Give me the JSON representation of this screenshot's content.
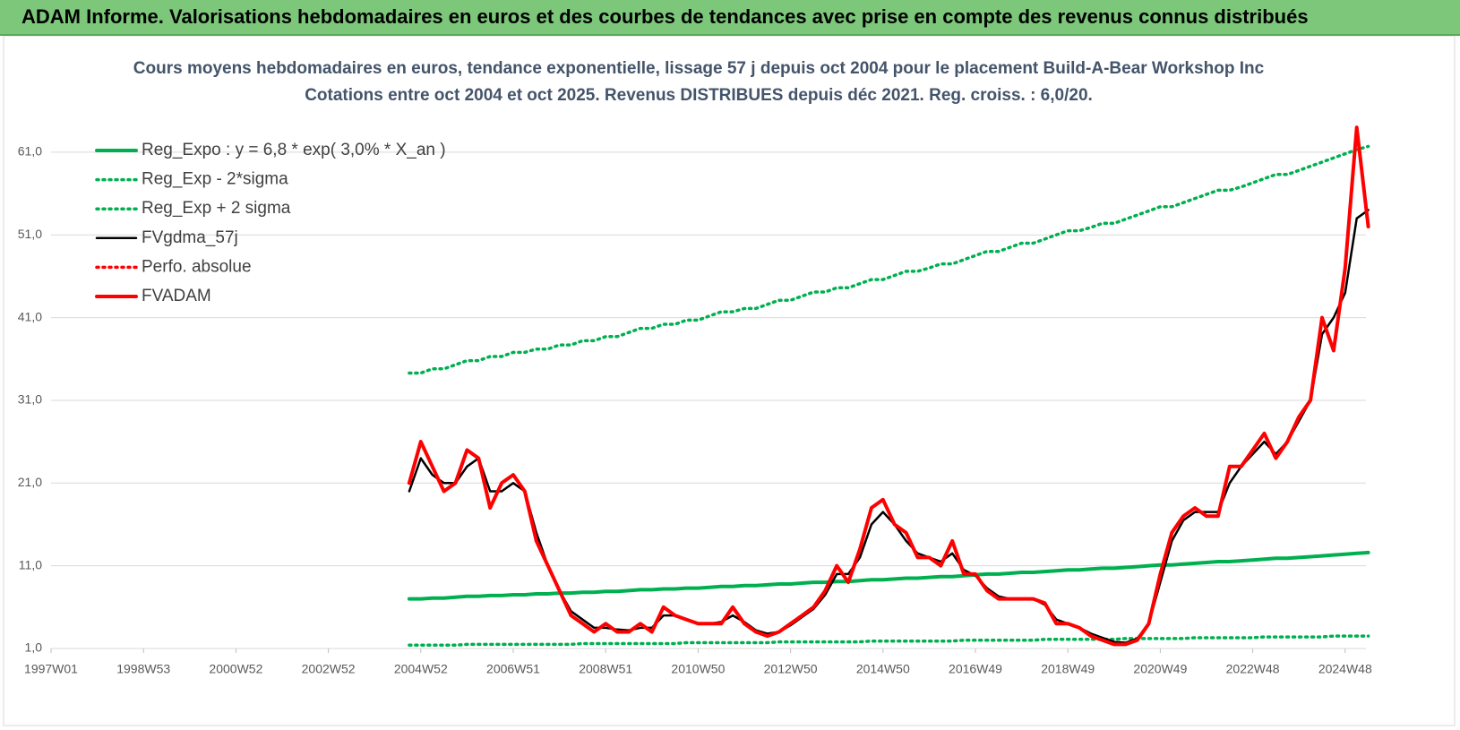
{
  "banner": "ADAM Informe. Valorisations hebdomadaires en euros et des courbes de tendances avec prise en compte des revenus connus distribués",
  "chart_data": {
    "type": "line",
    "title": "Cours moyens hebdomadaires en euros, tendance exponentielle, lissage 57 j depuis oct 2004 pour le placement Build-A-Bear Workshop Inc",
    "subtitle": "Cotations entre oct 2004 et oct 2025.  Revenus DISTRIBUES depuis déc 2021. Reg. croiss. : 6,0/20.",
    "categories": [
      "1997W01",
      null,
      null,
      null,
      null,
      null,
      null,
      null,
      "1998W53",
      null,
      null,
      null,
      null,
      null,
      null,
      null,
      "2000W52",
      null,
      null,
      null,
      null,
      null,
      null,
      null,
      "2002W52",
      null,
      null,
      null,
      null,
      null,
      null,
      null,
      "2004W52",
      null,
      null,
      null,
      null,
      null,
      null,
      null,
      "2006W51",
      null,
      null,
      null,
      null,
      null,
      null,
      null,
      "2008W51",
      null,
      null,
      null,
      null,
      null,
      null,
      null,
      "2010W50",
      null,
      null,
      null,
      null,
      null,
      null,
      null,
      "2012W50",
      null,
      null,
      null,
      null,
      null,
      null,
      null,
      "2014W50",
      null,
      null,
      null,
      null,
      null,
      null,
      null,
      "2016W49",
      null,
      null,
      null,
      null,
      null,
      null,
      null,
      "2018W49",
      null,
      null,
      null,
      null,
      null,
      null,
      null,
      "2020W49",
      null,
      null,
      null,
      null,
      null,
      null,
      null,
      "2022W48",
      null,
      null,
      null,
      null,
      null,
      null,
      null,
      "2024W48",
      null,
      null
    ],
    "ylim": [
      1,
      69
    ],
    "yticks": [
      {
        "value": 1,
        "label": "1,0"
      },
      {
        "value": 11,
        "label": "11,0"
      },
      {
        "value": 21,
        "label": "21,0"
      },
      {
        "value": 31,
        "label": "31,0"
      },
      {
        "value": 41,
        "label": "41,0"
      },
      {
        "value": 51,
        "label": "51,0"
      },
      {
        "value": 61,
        "label": "61,0"
      }
    ],
    "grid": true,
    "legend": "top-left",
    "series": [
      {
        "name": "Reg_Expo : y = 6,8 * exp( 3,0% *  X_an )",
        "color": "#00b050",
        "style": "solid",
        "values": [
          null,
          null,
          null,
          null,
          null,
          null,
          null,
          null,
          null,
          null,
          null,
          null,
          null,
          null,
          null,
          null,
          null,
          null,
          null,
          null,
          null,
          null,
          null,
          null,
          null,
          null,
          null,
          null,
          null,
          null,
          null,
          7.0,
          7.0,
          7.1,
          7.1,
          7.2,
          7.3,
          7.3,
          7.4,
          7.4,
          7.5,
          7.5,
          7.6,
          7.6,
          7.7,
          7.7,
          7.8,
          7.8,
          7.9,
          7.9,
          8.0,
          8.1,
          8.1,
          8.2,
          8.2,
          8.3,
          8.3,
          8.4,
          8.5,
          8.5,
          8.6,
          8.6,
          8.7,
          8.8,
          8.8,
          8.9,
          9.0,
          9.0,
          9.1,
          9.1,
          9.2,
          9.3,
          9.3,
          9.4,
          9.5,
          9.5,
          9.6,
          9.7,
          9.7,
          9.8,
          9.9,
          10.0,
          10.0,
          10.1,
          10.2,
          10.2,
          10.3,
          10.4,
          10.5,
          10.5,
          10.6,
          10.7,
          10.7,
          10.8,
          10.9,
          11.0,
          11.1,
          11.1,
          11.2,
          11.3,
          11.4,
          11.5,
          11.5,
          11.6,
          11.7,
          11.8,
          11.9,
          11.9,
          12.0,
          12.1,
          12.2,
          12.3,
          12.4,
          12.5,
          12.6
        ]
      },
      {
        "name": "Reg_Exp - 2*sigma",
        "color": "#00b050",
        "style": "dotted",
        "values": [
          null,
          null,
          null,
          null,
          null,
          null,
          null,
          null,
          null,
          null,
          null,
          null,
          null,
          null,
          null,
          null,
          null,
          null,
          null,
          null,
          null,
          null,
          null,
          null,
          null,
          null,
          null,
          null,
          null,
          null,
          null,
          1.4,
          1.4,
          1.4,
          1.4,
          1.4,
          1.5,
          1.5,
          1.5,
          1.5,
          1.5,
          1.5,
          1.5,
          1.5,
          1.5,
          1.5,
          1.6,
          1.6,
          1.6,
          1.6,
          1.6,
          1.6,
          1.6,
          1.6,
          1.6,
          1.7,
          1.7,
          1.7,
          1.7,
          1.7,
          1.7,
          1.7,
          1.7,
          1.8,
          1.8,
          1.8,
          1.8,
          1.8,
          1.8,
          1.8,
          1.8,
          1.9,
          1.9,
          1.9,
          1.9,
          1.9,
          1.9,
          1.9,
          1.9,
          2.0,
          2.0,
          2.0,
          2.0,
          2.0,
          2.0,
          2.0,
          2.1,
          2.1,
          2.1,
          2.1,
          2.1,
          2.1,
          2.1,
          2.2,
          2.2,
          2.2,
          2.2,
          2.2,
          2.2,
          2.3,
          2.3,
          2.3,
          2.3,
          2.3,
          2.3,
          2.4,
          2.4,
          2.4,
          2.4,
          2.4,
          2.4,
          2.5,
          2.5,
          2.5,
          2.5
        ]
      },
      {
        "name": "Reg_Exp + 2 sigma",
        "color": "#00b050",
        "style": "dotted",
        "values": [
          null,
          null,
          null,
          null,
          null,
          null,
          null,
          null,
          null,
          null,
          null,
          null,
          null,
          null,
          null,
          null,
          null,
          null,
          null,
          null,
          null,
          null,
          null,
          null,
          null,
          null,
          null,
          null,
          null,
          null,
          null,
          34.3,
          34.3,
          34.8,
          34.8,
          35.3,
          35.8,
          35.8,
          36.3,
          36.3,
          36.8,
          36.8,
          37.2,
          37.2,
          37.7,
          37.7,
          38.2,
          38.2,
          38.7,
          38.7,
          39.2,
          39.7,
          39.7,
          40.2,
          40.2,
          40.7,
          40.7,
          41.2,
          41.7,
          41.7,
          42.1,
          42.1,
          42.6,
          43.1,
          43.1,
          43.6,
          44.1,
          44.1,
          44.6,
          44.6,
          45.1,
          45.6,
          45.6,
          46.1,
          46.6,
          46.6,
          47.0,
          47.5,
          47.5,
          48.0,
          48.5,
          49.0,
          49.0,
          49.5,
          50.0,
          50.0,
          50.5,
          51.0,
          51.5,
          51.5,
          51.9,
          52.4,
          52.4,
          52.9,
          53.4,
          53.9,
          54.4,
          54.4,
          54.9,
          55.4,
          55.9,
          56.4,
          56.4,
          56.8,
          57.3,
          57.8,
          58.3,
          58.3,
          58.8,
          59.3,
          59.8,
          60.3,
          60.8,
          61.3,
          61.7
        ]
      },
      {
        "name": "FVgdma_57j",
        "color": "#000000",
        "style": "thin",
        "values": [
          null,
          null,
          null,
          null,
          null,
          null,
          null,
          null,
          null,
          null,
          null,
          null,
          null,
          null,
          null,
          null,
          null,
          null,
          null,
          null,
          null,
          null,
          null,
          null,
          null,
          null,
          null,
          null,
          null,
          null,
          null,
          20,
          24,
          22,
          21,
          21,
          23,
          24,
          20,
          20,
          21,
          20,
          15,
          11,
          8,
          5.5,
          4.5,
          3.5,
          3.5,
          3.3,
          3.2,
          3.5,
          3.5,
          5,
          5,
          4.5,
          4,
          4,
          4.2,
          5,
          4.2,
          3.2,
          2.8,
          3,
          3.8,
          4.8,
          5.8,
          7.5,
          10,
          10,
          12,
          16,
          17.5,
          16,
          14,
          12.5,
          12,
          11.5,
          12.5,
          10.5,
          9.8,
          8.3,
          7.3,
          7,
          7,
          7,
          6.3,
          4.5,
          4,
          3.5,
          2.8,
          2.3,
          1.8,
          1.7,
          2.2,
          4,
          9,
          14,
          16.5,
          17.5,
          17.5,
          17.5,
          21,
          23,
          24.5,
          26,
          24.5,
          26,
          28.5,
          31,
          39,
          41,
          44,
          53,
          54
        ]
      },
      {
        "name": "Perfo. absolue",
        "color": "#ff0000",
        "style": "dotted",
        "values": [
          null,
          null,
          null,
          null,
          null,
          null,
          null,
          null,
          null,
          null,
          null,
          null,
          null,
          null,
          null,
          null,
          null,
          null,
          null,
          null,
          null,
          null,
          null,
          null,
          null,
          null,
          null,
          null,
          null,
          null,
          null,
          null,
          null,
          null,
          null,
          null,
          null,
          null,
          null,
          null,
          null,
          null,
          null,
          null,
          null,
          null,
          null,
          null,
          null,
          null,
          null,
          null,
          null,
          null,
          null,
          null,
          null,
          null,
          null,
          null,
          null,
          null,
          null,
          null,
          null,
          null,
          null,
          null,
          null,
          null,
          null,
          null,
          null,
          null,
          null,
          null,
          null,
          null,
          null,
          null,
          null,
          null,
          null,
          null,
          null,
          null,
          null,
          null,
          null,
          null,
          null,
          null,
          null,
          null,
          null,
          null,
          null,
          null,
          null,
          null,
          null,
          null,
          null,
          null,
          null,
          null,
          null,
          null,
          null,
          null,
          null,
          null,
          null,
          null,
          null
        ]
      },
      {
        "name": "FVADAM",
        "color": "#ff0000",
        "style": "solid",
        "values": [
          null,
          null,
          null,
          null,
          null,
          null,
          null,
          null,
          null,
          null,
          null,
          null,
          null,
          null,
          null,
          null,
          null,
          null,
          null,
          null,
          null,
          null,
          null,
          null,
          null,
          null,
          null,
          null,
          null,
          null,
          null,
          21,
          26,
          23,
          20,
          21,
          25,
          24,
          18,
          21,
          22,
          20,
          14,
          11,
          8,
          5,
          4,
          3,
          4,
          3,
          3,
          4,
          3,
          6,
          5,
          4.5,
          4,
          4,
          4,
          6,
          4,
          3,
          2.5,
          3,
          4,
          5,
          6,
          8,
          11,
          9,
          13,
          18,
          19,
          16,
          15,
          12,
          12,
          11,
          14,
          10,
          10,
          8,
          7,
          7,
          7,
          7,
          6.5,
          4,
          4,
          3.5,
          2.5,
          2,
          1.5,
          1.5,
          2,
          4,
          10,
          15,
          17,
          18,
          17,
          17,
          23,
          23,
          25,
          27,
          24,
          26,
          29,
          31,
          41,
          37,
          47,
          64,
          52
        ]
      }
    ]
  }
}
